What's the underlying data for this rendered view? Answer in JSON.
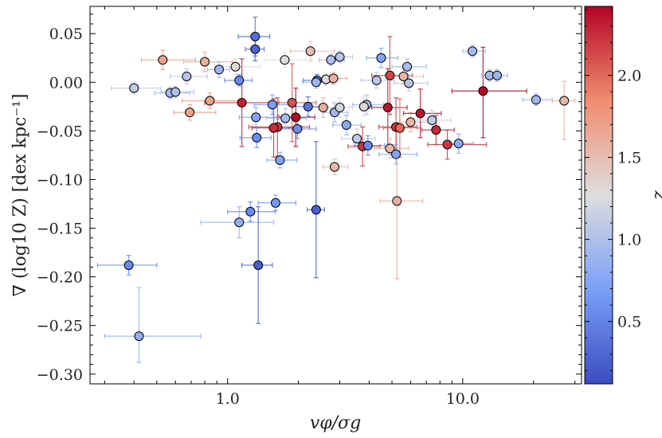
{
  "chart_data": {
    "type": "scatter",
    "x_scale": "log",
    "xlim": [
      0.26,
      32
    ],
    "ylim": [
      -0.31,
      0.078
    ],
    "xlabel": "vφ/σg",
    "ylabel": "∇ (log10 Z) [dex kpc⁻¹]",
    "colorbar_label": "z",
    "colorbar_range": [
      0.12,
      2.42
    ],
    "colormap": "coolwarm",
    "x_tick_values": [
      1.0,
      10.0
    ],
    "x_tick_labels": [
      "1.0",
      "10.0"
    ],
    "y_tick_values": [
      0.05,
      0.0,
      -0.05,
      -0.1,
      -0.15,
      -0.2,
      -0.25,
      -0.3
    ],
    "y_tick_labels": [
      "0.05",
      "0.00",
      "−0.05",
      "−0.10",
      "−0.15",
      "−0.20",
      "−0.25",
      "−0.30"
    ],
    "colorbar_tick_values": [
      0.5,
      1.0,
      1.5,
      2.0
    ],
    "colorbar_tick_labels": [
      "0.5",
      "1.0",
      "1.5",
      "2.0"
    ],
    "points": [
      {
        "x": 1.31,
        "y": 0.047,
        "z": 0.35,
        "xerr": [
          0.2,
          0.2
        ],
        "yerr": [
          0.02,
          0.02
        ]
      },
      {
        "x": 1.31,
        "y": 0.034,
        "z": 0.3,
        "xerr": [
          0.12,
          0.12
        ],
        "yerr": [
          0.012,
          0.012
        ]
      },
      {
        "x": 0.53,
        "y": 0.023,
        "z": 1.7,
        "xerr": [
          0.1,
          0.2
        ],
        "yerr": [
          0.01,
          0.01
        ]
      },
      {
        "x": 0.8,
        "y": 0.021,
        "z": 1.6,
        "xerr": [
          0.15,
          0.25
        ],
        "yerr": [
          0.01,
          0.01
        ]
      },
      {
        "x": 2.25,
        "y": 0.032,
        "z": 1.5,
        "xerr": [
          0.4,
          0.6
        ],
        "yerr": [
          0.01,
          0.01
        ]
      },
      {
        "x": 1.75,
        "y": 0.023,
        "z": 1.25,
        "xerr": [
          0.3,
          0.4
        ],
        "yerr": [
          0.008,
          0.008
        ]
      },
      {
        "x": 0.92,
        "y": 0.013,
        "z": 0.9,
        "xerr": [
          0.1,
          0.1
        ],
        "yerr": [
          0.008,
          0.008
        ]
      },
      {
        "x": 1.08,
        "y": 0.016,
        "z": 1.3,
        "xerr": [
          0.2,
          0.3
        ],
        "yerr": [
          0.008,
          0.008
        ]
      },
      {
        "x": 0.67,
        "y": 0.006,
        "z": 1.05,
        "xerr": [
          0.1,
          0.15
        ],
        "yerr": [
          0.008,
          0.008
        ]
      },
      {
        "x": 1.12,
        "y": 0.002,
        "z": 0.55,
        "xerr": [
          0.15,
          0.15
        ],
        "yerr": [
          0.006,
          0.006
        ]
      },
      {
        "x": 0.4,
        "y": -0.006,
        "z": 1.1,
        "xerr": [
          0.08,
          0.12
        ],
        "yerr": [
          0.006,
          0.006
        ]
      },
      {
        "x": 0.57,
        "y": -0.011,
        "z": 0.95,
        "xerr": [
          0.08,
          0.12
        ],
        "yerr": [
          0.006,
          0.006
        ]
      },
      {
        "x": 0.6,
        "y": -0.01,
        "z": 1.0,
        "xerr": [
          0.08,
          0.12
        ],
        "yerr": [
          0.006,
          0.006
        ]
      },
      {
        "x": 0.84,
        "y": -0.019,
        "z": 1.7,
        "xerr": [
          0.2,
          0.3
        ],
        "yerr": [
          0.008,
          0.008
        ]
      },
      {
        "x": 0.69,
        "y": -0.031,
        "z": 1.7,
        "xerr": [
          0.1,
          0.2
        ],
        "yerr": [
          0.008,
          0.008
        ]
      },
      {
        "x": 1.15,
        "y": -0.021,
        "z": 2.3,
        "xerr": [
          0.35,
          0.5
        ],
        "yerr": [
          0.045,
          0.045
        ]
      },
      {
        "x": 1.55,
        "y": -0.023,
        "z": 0.7,
        "xerr": [
          0.25,
          0.4
        ],
        "yerr": [
          0.01,
          0.01
        ]
      },
      {
        "x": 1.88,
        "y": -0.021,
        "z": 2.1,
        "xerr": [
          0.3,
          0.5
        ],
        "yerr": [
          0.04,
          0.04
        ]
      },
      {
        "x": 2.2,
        "y": -0.025,
        "z": 0.4,
        "xerr": [
          0.3,
          0.4
        ],
        "yerr": [
          0.01,
          0.01
        ]
      },
      {
        "x": 1.32,
        "y": -0.036,
        "z": 0.75,
        "xerr": [
          0.2,
          0.3
        ],
        "yerr": [
          0.01,
          0.01
        ]
      },
      {
        "x": 1.63,
        "y": -0.046,
        "z": 2.2,
        "xerr": [
          0.4,
          0.6
        ],
        "yerr": [
          0.03,
          0.03
        ]
      },
      {
        "x": 1.57,
        "y": -0.047,
        "z": 2.25,
        "xerr": [
          0.3,
          0.5
        ],
        "yerr": [
          0.03,
          0.03
        ]
      },
      {
        "x": 1.95,
        "y": -0.036,
        "z": 2.4,
        "xerr": [
          0.3,
          0.4
        ],
        "yerr": [
          0.03,
          0.03
        ]
      },
      {
        "x": 1.76,
        "y": -0.037,
        "z": 0.95,
        "xerr": [
          0.3,
          0.4
        ],
        "yerr": [
          0.01,
          0.01
        ]
      },
      {
        "x": 1.98,
        "y": -0.048,
        "z": 0.55,
        "xerr": [
          0.3,
          0.4
        ],
        "yerr": [
          0.01,
          0.01
        ]
      },
      {
        "x": 1.33,
        "y": -0.057,
        "z": 0.55,
        "xerr": [
          0.2,
          0.2
        ],
        "yerr": [
          0.01,
          0.01
        ]
      },
      {
        "x": 1.67,
        "y": -0.08,
        "z": 0.75,
        "xerr": [
          0.2,
          0.3
        ],
        "yerr": [
          0.008,
          0.008
        ]
      },
      {
        "x": 2.4,
        "y": 0.002,
        "z": 0.4,
        "xerr": [
          0.3,
          0.4
        ],
        "yerr": [
          0.006,
          0.006
        ]
      },
      {
        "x": 2.38,
        "y": 0.0,
        "z": 0.9,
        "xerr": [
          0.3,
          0.4
        ],
        "yerr": [
          0.006,
          0.006
        ]
      },
      {
        "x": 2.62,
        "y": 0.003,
        "z": 1.3,
        "xerr": [
          0.3,
          0.4
        ],
        "yerr": [
          0.006,
          0.006
        ]
      },
      {
        "x": 2.82,
        "y": 0.004,
        "z": 1.6,
        "xerr": [
          0.3,
          0.4
        ],
        "yerr": [
          0.006,
          0.006
        ]
      },
      {
        "x": 2.75,
        "y": 0.023,
        "z": 1.0,
        "xerr": [
          0.3,
          0.4
        ],
        "yerr": [
          0.006,
          0.006
        ]
      },
      {
        "x": 3.0,
        "y": 0.026,
        "z": 1.05,
        "xerr": [
          0.3,
          0.4
        ],
        "yerr": [
          0.006,
          0.006
        ]
      },
      {
        "x": 2.55,
        "y": -0.026,
        "z": 1.6,
        "xerr": [
          0.3,
          0.4
        ],
        "yerr": [
          0.01,
          0.01
        ]
      },
      {
        "x": 2.85,
        "y": -0.031,
        "z": 0.9,
        "xerr": [
          0.3,
          0.4
        ],
        "yerr": [
          0.01,
          0.01
        ]
      },
      {
        "x": 3.0,
        "y": -0.026,
        "z": 1.2,
        "xerr": [
          0.3,
          0.4
        ],
        "yerr": [
          0.01,
          0.01
        ]
      },
      {
        "x": 3.2,
        "y": -0.044,
        "z": 0.8,
        "xerr": [
          0.4,
          0.5
        ],
        "yerr": [
          0.01,
          0.01
        ]
      },
      {
        "x": 2.85,
        "y": -0.087,
        "z": 1.55,
        "xerr": [
          0.3,
          0.4
        ],
        "yerr": [
          0.008,
          0.008
        ]
      },
      {
        "x": 2.38,
        "y": -0.131,
        "z": 0.25,
        "xerr": [
          0.2,
          0.2
        ],
        "yerr": [
          0.07,
          0.07
        ]
      },
      {
        "x": 3.9,
        "y": -0.023,
        "z": 0.95,
        "xerr": [
          0.5,
          0.7
        ],
        "yerr": [
          0.01,
          0.01
        ]
      },
      {
        "x": 3.8,
        "y": -0.025,
        "z": 1.3,
        "xerr": [
          0.5,
          0.7
        ],
        "yerr": [
          0.01,
          0.01
        ]
      },
      {
        "x": 4.8,
        "y": -0.026,
        "z": 2.35,
        "xerr": [
          0.7,
          1.0
        ],
        "yerr": [
          0.04,
          0.04
        ]
      },
      {
        "x": 4.9,
        "y": 0.007,
        "z": 2.15,
        "xerr": [
          0.8,
          1.2
        ],
        "yerr": [
          0.04,
          0.04
        ]
      },
      {
        "x": 4.5,
        "y": 0.025,
        "z": 0.75,
        "xerr": [
          0.6,
          0.8
        ],
        "yerr": [
          0.01,
          0.01
        ]
      },
      {
        "x": 4.3,
        "y": 0.002,
        "z": 1.05,
        "xerr": [
          0.6,
          0.8
        ],
        "yerr": [
          0.008,
          0.008
        ]
      },
      {
        "x": 3.55,
        "y": -0.058,
        "z": 1.1,
        "xerr": [
          0.5,
          0.7
        ],
        "yerr": [
          0.01,
          0.01
        ]
      },
      {
        "x": 3.75,
        "y": -0.066,
        "z": 2.2,
        "xerr": [
          0.5,
          0.7
        ],
        "yerr": [
          0.02,
          0.02
        ]
      },
      {
        "x": 3.95,
        "y": -0.065,
        "z": 0.55,
        "xerr": [
          0.5,
          0.7
        ],
        "yerr": [
          0.01,
          0.01
        ]
      },
      {
        "x": 4.9,
        "y": -0.068,
        "z": 1.55,
        "xerr": [
          0.7,
          1.0
        ],
        "yerr": [
          0.01,
          0.01
        ]
      },
      {
        "x": 5.2,
        "y": -0.074,
        "z": 0.75,
        "xerr": [
          0.8,
          1.2
        ],
        "yerr": [
          0.01,
          0.01
        ]
      },
      {
        "x": 5.2,
        "y": -0.046,
        "z": 2.2,
        "xerr": [
          0.8,
          1.2
        ],
        "yerr": [
          0.03,
          0.03
        ]
      },
      {
        "x": 5.4,
        "y": -0.047,
        "z": 2.0,
        "xerr": [
          0.8,
          1.2
        ],
        "yerr": [
          0.03,
          0.03
        ]
      },
      {
        "x": 5.25,
        "y": -0.122,
        "z": 1.6,
        "xerr": [
          0.8,
          1.5
        ],
        "yerr": [
          0.08,
          0.08
        ]
      },
      {
        "x": 5.6,
        "y": 0.006,
        "z": 1.55,
        "xerr": [
          0.8,
          1.2
        ],
        "yerr": [
          0.008,
          0.008
        ]
      },
      {
        "x": 5.8,
        "y": 0.016,
        "z": 0.95,
        "xerr": [
          0.8,
          1.2
        ],
        "yerr": [
          0.008,
          0.008
        ]
      },
      {
        "x": 5.9,
        "y": -0.001,
        "z": 1.05,
        "xerr": [
          0.8,
          1.2
        ],
        "yerr": [
          0.008,
          0.008
        ]
      },
      {
        "x": 6.0,
        "y": -0.041,
        "z": 1.55,
        "xerr": [
          0.8,
          1.2
        ],
        "yerr": [
          0.01,
          0.01
        ]
      },
      {
        "x": 6.6,
        "y": -0.032,
        "z": 2.35,
        "xerr": [
          1.0,
          1.5
        ],
        "yerr": [
          0.025,
          0.025
        ]
      },
      {
        "x": 7.4,
        "y": -0.039,
        "z": 1.1,
        "xerr": [
          1.0,
          1.5
        ],
        "yerr": [
          0.01,
          0.01
        ]
      },
      {
        "x": 7.7,
        "y": -0.049,
        "z": 2.25,
        "xerr": [
          1.0,
          1.5
        ],
        "yerr": [
          0.015,
          0.015
        ]
      },
      {
        "x": 8.6,
        "y": -0.064,
        "z": 2.2,
        "xerr": [
          1.5,
          4.0
        ],
        "yerr": [
          0.015,
          0.015
        ]
      },
      {
        "x": 9.6,
        "y": -0.063,
        "z": 0.8,
        "xerr": [
          1.2,
          1.5
        ],
        "yerr": [
          0.01,
          0.01
        ]
      },
      {
        "x": 11.0,
        "y": 0.032,
        "z": 0.95,
        "xerr": [
          1.0,
          1.5
        ],
        "yerr": [
          0.006,
          0.006
        ]
      },
      {
        "x": 12.2,
        "y": -0.009,
        "z": 2.4,
        "xerr": [
          3.2,
          6.5
        ],
        "yerr": [
          0.048,
          0.045
        ]
      },
      {
        "x": 13.0,
        "y": 0.007,
        "z": 0.95,
        "xerr": [
          1.0,
          1.5
        ],
        "yerr": [
          0.006,
          0.006
        ]
      },
      {
        "x": 14.0,
        "y": 0.007,
        "z": 0.9,
        "xerr": [
          1.0,
          1.5
        ],
        "yerr": [
          0.006,
          0.006
        ]
      },
      {
        "x": 20.5,
        "y": -0.018,
        "z": 0.9,
        "xerr": [
          2.5,
          3.5
        ],
        "yerr": [
          0.006,
          0.006
        ]
      },
      {
        "x": 27.0,
        "y": -0.019,
        "z": 1.55,
        "xerr": [
          3.0,
          3.0
        ],
        "yerr": [
          0.04,
          0.02
        ]
      },
      {
        "x": 1.25,
        "y": -0.133,
        "z": 0.55,
        "xerr": [
          0.25,
          0.35
        ],
        "yerr": [
          0.01,
          0.01
        ]
      },
      {
        "x": 1.12,
        "y": -0.144,
        "z": 0.85,
        "xerr": [
          0.35,
          0.45
        ],
        "yerr": [
          0.016,
          0.016
        ]
      },
      {
        "x": 1.6,
        "y": -0.124,
        "z": 0.65,
        "xerr": [
          0.25,
          0.35
        ],
        "yerr": [
          0.008,
          0.008
        ]
      },
      {
        "x": 1.35,
        "y": -0.188,
        "z": 0.25,
        "xerr": [
          0.2,
          0.2
        ],
        "yerr": [
          0.06,
          0.06
        ]
      },
      {
        "x": 0.38,
        "y": -0.188,
        "z": 0.55,
        "xerr": [
          0.1,
          0.12
        ],
        "yerr": [
          0.01,
          0.01
        ]
      },
      {
        "x": 0.42,
        "y": -0.261,
        "z": 0.85,
        "xerr": [
          0.12,
          0.35
        ],
        "yerr": [
          0.027,
          0.05
        ]
      }
    ]
  }
}
